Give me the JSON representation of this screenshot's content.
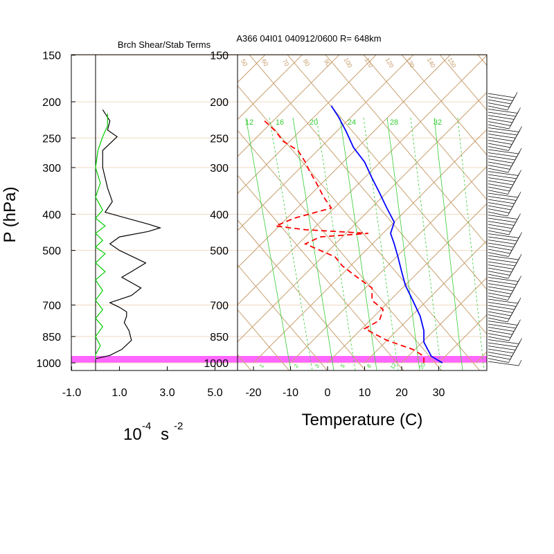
{
  "chart_data": [
    {
      "type": "line",
      "title": "Brch Shear/Stab Terms",
      "ylabel": "P (hPa)",
      "xlabel_base": "10",
      "xlabel_exp": "-4",
      "xlabel_unit": "s",
      "xlabel_unit_exp": "-2",
      "xlim": [
        -1.0,
        5.0
      ],
      "x_tick_labels": [
        "-1.0",
        "1.0",
        "3.0",
        "5.0"
      ],
      "y_tick_labels": [
        "150",
        "200",
        "250",
        "300",
        "400",
        "500",
        "700",
        "850",
        "1000"
      ],
      "y_ticks": [
        150,
        200,
        250,
        300,
        400,
        500,
        700,
        850,
        1000
      ],
      "ylim": [
        150,
        1050
      ],
      "series": [
        {
          "color": "#000000",
          "points": [
            [
              0.3,
              210
            ],
            [
              0.6,
              225
            ],
            [
              0.5,
              238
            ],
            [
              0.9,
              248
            ],
            [
              0.3,
              270
            ],
            [
              0.3,
              300
            ],
            [
              0.5,
              340
            ],
            [
              0.7,
              370
            ],
            [
              0.4,
              395
            ],
            [
              1.3,
              410
            ],
            [
              2.2,
              425
            ],
            [
              2.7,
              435
            ],
            [
              2.2,
              445
            ],
            [
              1.0,
              460
            ],
            [
              0.6,
              480
            ],
            [
              1.0,
              500
            ],
            [
              2.1,
              540
            ],
            [
              1.5,
              570
            ],
            [
              1.1,
              590
            ],
            [
              1.9,
              630
            ],
            [
              1.5,
              660
            ],
            [
              0.6,
              690
            ],
            [
              1.0,
              710
            ],
            [
              1.3,
              730
            ],
            [
              1.3,
              750
            ],
            [
              1.2,
              780
            ],
            [
              1.4,
              820
            ],
            [
              1.5,
              870
            ],
            [
              1.1,
              920
            ],
            [
              0.6,
              955
            ],
            [
              0.0,
              975
            ]
          ]
        },
        {
          "color": "#00cc00",
          "points": [
            [
              0.5,
              215
            ],
            [
              0.5,
              232
            ],
            [
              0.3,
              248
            ],
            [
              0.1,
              270
            ],
            [
              0.0,
              300
            ],
            [
              0.2,
              330
            ],
            [
              0.0,
              360
            ],
            [
              0.3,
              390
            ],
            [
              0.0,
              410
            ],
            [
              0.4,
              430
            ],
            [
              0.0,
              450
            ],
            [
              0.3,
              470
            ],
            [
              0.0,
              490
            ],
            [
              0.4,
              510
            ],
            [
              0.0,
              540
            ],
            [
              0.4,
              570
            ],
            [
              0.0,
              600
            ],
            [
              0.3,
              640
            ],
            [
              0.0,
              680
            ],
            [
              0.3,
              720
            ],
            [
              0.0,
              760
            ],
            [
              0.3,
              800
            ],
            [
              0.0,
              850
            ],
            [
              0.2,
              900
            ],
            [
              0.0,
              950
            ],
            [
              0.0,
              980
            ]
          ]
        }
      ]
    },
    {
      "type": "line",
      "title": "A366 04I01 040912/0600 R= 648km",
      "xlabel": "Temperature (C)",
      "xlim": [
        -25,
        43
      ],
      "x_tick_labels": [
        "-20",
        "-10",
        "0",
        "10",
        "20",
        "30"
      ],
      "x_ticks": [
        -20,
        -10,
        0,
        10,
        20,
        30
      ],
      "y_tick_labels": [
        "150",
        "200",
        "250",
        "300",
        "400",
        "500",
        "700",
        "850",
        "1000"
      ],
      "y_ticks": [
        150,
        200,
        250,
        300,
        400,
        500,
        700,
        850,
        1000
      ],
      "ylim": [
        150,
        1050
      ],
      "log_pressure_axis": true,
      "series": [
        {
          "color": "#0000ff",
          "style": "solid",
          "points": [
            [
              1,
              205
            ],
            [
              3,
              220
            ],
            [
              5,
              240
            ],
            [
              7,
              265
            ],
            [
              10,
              290
            ],
            [
              12,
              320
            ],
            [
              14,
              350
            ],
            [
              16,
              385
            ],
            [
              18,
              420
            ],
            [
              17,
              450
            ],
            [
              18,
              480
            ],
            [
              19,
              520
            ],
            [
              20,
              570
            ],
            [
              21,
              620
            ],
            [
              23,
              680
            ],
            [
              25,
              750
            ],
            [
              26,
              820
            ],
            [
              26,
              880
            ],
            [
              28,
              960
            ],
            [
              31,
              1000
            ]
          ]
        },
        {
          "color": "#ff0000",
          "style": "dashed",
          "points": [
            [
              -17,
              225
            ],
            [
              -14,
              240
            ],
            [
              -12,
              255
            ],
            [
              -8,
              270
            ],
            [
              -6,
              290
            ],
            [
              -5,
              305
            ],
            [
              -3,
              330
            ],
            [
              -1,
              360
            ],
            [
              1,
              385
            ],
            [
              -9,
              410
            ],
            [
              -14,
              430
            ],
            [
              -6,
              440
            ],
            [
              11,
              450
            ],
            [
              -2,
              460
            ],
            [
              -6,
              480
            ],
            [
              -2,
              500
            ],
            [
              2,
              520
            ],
            [
              4,
              550
            ],
            [
              8,
              590
            ],
            [
              12,
              630
            ],
            [
              12,
              680
            ],
            [
              15,
              720
            ],
            [
              14,
              770
            ],
            [
              10,
              810
            ],
            [
              16,
              870
            ],
            [
              23,
              920
            ],
            [
              26,
              960
            ],
            [
              26,
              1000
            ]
          ]
        }
      ],
      "mixing_ratio_labels": [
        "12",
        "16",
        "20",
        "24",
        "28",
        "32"
      ],
      "dry_adiabat_labels": [
        "50",
        "60",
        "70",
        "80",
        "90",
        "100",
        "110",
        "120",
        "130",
        "140",
        "150"
      ],
      "moist_adiabat_labels": [
        "1",
        "2",
        "3",
        "5",
        "8",
        "12",
        "20"
      ],
      "highlight_pressure": 1000,
      "highlight_color": "#ff66ff"
    }
  ],
  "colors": {
    "grid_tan": "#c8a070",
    "mixing_green": "#33cc33",
    "highlight": "#ff66ff"
  }
}
